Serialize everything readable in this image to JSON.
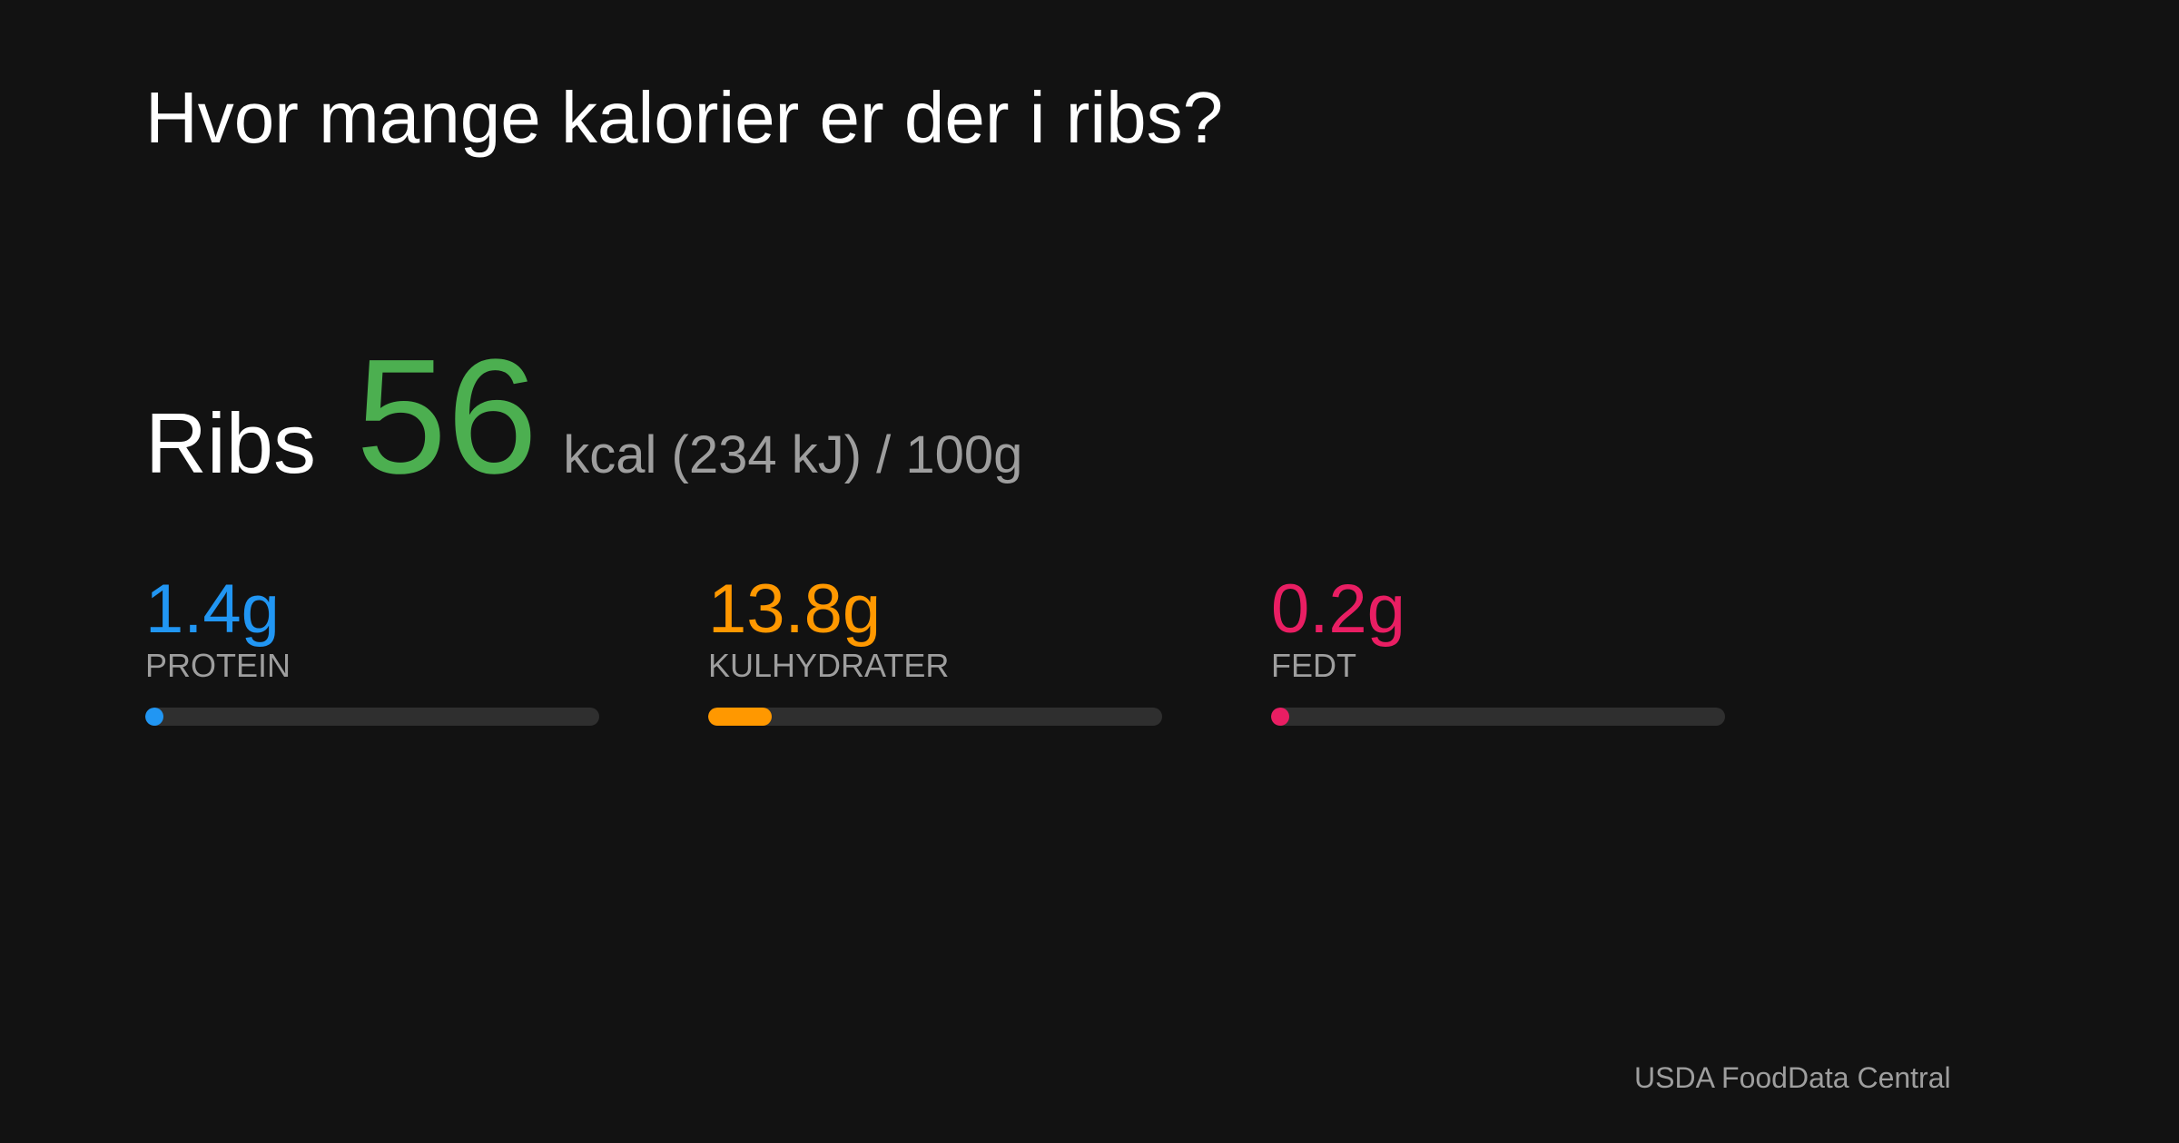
{
  "title": "Hvor mange kalorier er der i ribs?",
  "food": {
    "name": "Ribs",
    "kcal": "56",
    "unit_text": "kcal (234 kJ) / 100g",
    "kcal_color": "#4caf50"
  },
  "macros": [
    {
      "value": "1.4g",
      "label": "PROTEIN",
      "color": "#2196f3",
      "fill_fraction": 0.04
    },
    {
      "value": "13.8g",
      "label": "KULHYDRATER",
      "color": "#ff9800",
      "fill_fraction": 0.14
    },
    {
      "value": "0.2g",
      "label": "FEDT",
      "color": "#e91e63",
      "fill_fraction": 0.04
    }
  ],
  "source": "USDA FoodData Central"
}
